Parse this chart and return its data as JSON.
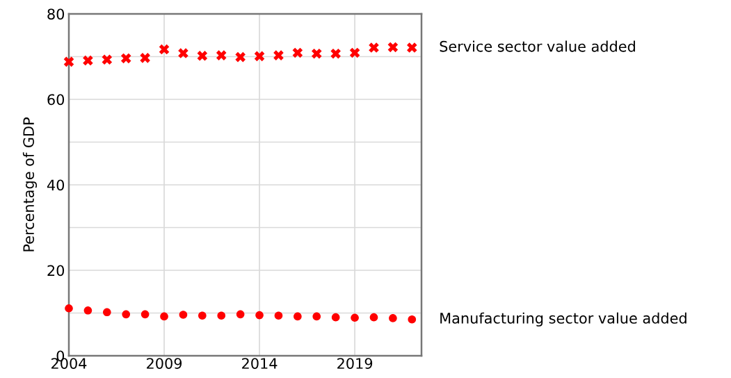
{
  "chart_data": {
    "type": "scatter",
    "ylabel": "Percentage of GDP",
    "x": [
      2004,
      2005,
      2006,
      2007,
      2008,
      2009,
      2010,
      2011,
      2012,
      2013,
      2014,
      2015,
      2016,
      2017,
      2018,
      2019,
      2020,
      2021,
      2022
    ],
    "series": [
      {
        "name": "Service sector value added",
        "color": "#ff0000",
        "marker": "cross",
        "values": [
          68.8,
          69.1,
          69.3,
          69.6,
          69.7,
          71.7,
          70.8,
          70.2,
          70.3,
          69.9,
          70.1,
          70.3,
          70.9,
          70.7,
          70.7,
          70.9,
          72.1,
          72.2,
          72.1
        ]
      },
      {
        "name": "Manufacturing sector value added",
        "color": "#ff0000",
        "marker": "circle",
        "values": [
          11.1,
          10.6,
          10.2,
          9.7,
          9.7,
          9.2,
          9.6,
          9.4,
          9.4,
          9.7,
          9.5,
          9.4,
          9.2,
          9.2,
          9.0,
          8.9,
          9.0,
          8.8,
          8.5
        ]
      }
    ],
    "xlim": [
      2004,
      2022.5
    ],
    "xticks": [
      2004,
      2009,
      2014,
      2019
    ],
    "ylim": [
      0,
      80
    ],
    "yticks": [
      0,
      {
        "value": 10,
        "label": null
      },
      20,
      {
        "value": 30,
        "label": null
      },
      40,
      {
        "value": 50,
        "label": null
      },
      60,
      {
        "value": 70,
        "label": null
      },
      80
    ],
    "grid": true,
    "legend": false
  }
}
